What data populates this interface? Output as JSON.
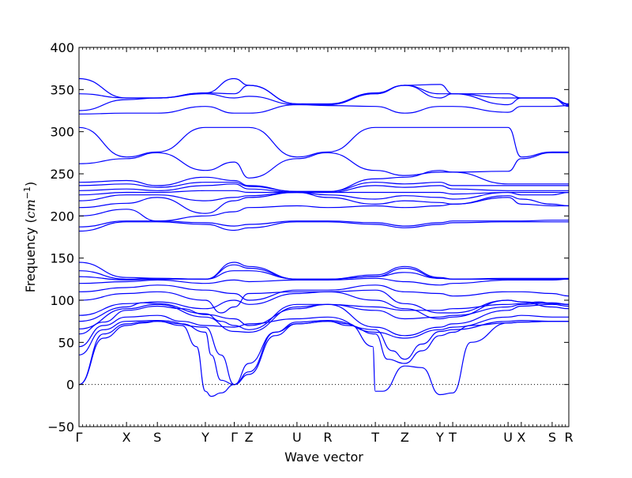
{
  "chart_data": {
    "type": "line",
    "title": "",
    "xlabel": "Wave vector",
    "ylabel_prefix": "Frequency (",
    "ylabel_unit": "cm",
    "ylabel_exponent": "−1",
    "ylabel_suffix": ")",
    "ylim": [
      -50,
      400
    ],
    "yticks": [
      -50,
      0,
      50,
      100,
      150,
      200,
      250,
      300,
      350,
      400
    ],
    "ytick_labels": [
      "−50",
      "0",
      "50",
      "100",
      "150",
      "200",
      "250",
      "300",
      "350",
      "400"
    ],
    "xlim": [
      0,
      1
    ],
    "grid": false,
    "zero_line": {
      "y": 0,
      "style": "dotted"
    },
    "line_color": "#0000ff",
    "high_symmetry_points": [
      {
        "label": "Γ",
        "x": 0.0
      },
      {
        "label": "X",
        "x": 0.097
      },
      {
        "label": "S",
        "x": 0.16
      },
      {
        "label": "Y",
        "x": 0.258
      },
      {
        "label": "Γ",
        "x": 0.317
      },
      {
        "label": "Z",
        "x": 0.347
      },
      {
        "label": "U",
        "x": 0.445
      },
      {
        "label": "R",
        "x": 0.508
      },
      {
        "label": "T",
        "x": 0.605
      },
      {
        "label": "Z",
        "x": 0.665
      },
      {
        "label": "Y",
        "x": 0.737
      },
      {
        "label": "T",
        "x": 0.763
      },
      {
        "label": "U",
        "x": 0.876
      },
      {
        "label": "X",
        "x": 0.903
      },
      {
        "label": "S",
        "x": 0.966
      },
      {
        "label": "R",
        "x": 1.0
      }
    ],
    "series": [
      {
        "x": [
          0,
          0.05,
          0.097,
          0.13,
          0.16,
          0.21,
          0.258,
          0.27,
          0.29,
          0.317,
          0.347,
          0.4,
          0.445,
          0.508,
          0.55,
          0.605,
          0.63,
          0.665,
          0.7,
          0.737,
          0.763,
          0.8,
          0.876,
          0.903,
          0.966,
          1.0
        ],
        "y": [
          0,
          55,
          70,
          73,
          75,
          72,
          62,
          35,
          5,
          0,
          12,
          58,
          72,
          75,
          70,
          60,
          30,
          25,
          40,
          58,
          62,
          70,
          73,
          74,
          75,
          75
        ]
      },
      {
        "x": [
          0,
          0.05,
          0.097,
          0.13,
          0.16,
          0.21,
          0.24,
          0.258,
          0.27,
          0.29,
          0.317,
          0.347,
          0.4,
          0.445,
          0.508,
          0.55,
          0.6,
          0.605,
          0.62,
          0.665,
          0.7,
          0.737,
          0.763,
          0.8,
          0.876,
          0.903,
          0.966,
          1.0
        ],
        "y": [
          0,
          60,
          72,
          74,
          75,
          70,
          45,
          -8,
          -14,
          -10,
          0,
          15,
          62,
          72,
          75,
          72,
          45,
          -8,
          -8,
          22,
          20,
          -12,
          -10,
          50,
          73,
          74,
          75,
          75
        ]
      },
      {
        "x": [
          0,
          0.05,
          0.097,
          0.16,
          0.258,
          0.29,
          0.317,
          0.347,
          0.4,
          0.445,
          0.508,
          0.605,
          0.64,
          0.665,
          0.7,
          0.737,
          0.763,
          0.876,
          0.903,
          0.966,
          1.0
        ],
        "y": [
          35,
          65,
          75,
          76,
          68,
          35,
          0,
          25,
          62,
          74,
          76,
          65,
          40,
          30,
          48,
          63,
          65,
          75,
          76,
          75,
          75
        ]
      },
      {
        "x": [
          0,
          0.05,
          0.097,
          0.16,
          0.21,
          0.258,
          0.317,
          0.347,
          0.445,
          0.508,
          0.605,
          0.665,
          0.737,
          0.763,
          0.876,
          0.903,
          0.966,
          1.0
        ],
        "y": [
          45,
          70,
          80,
          82,
          75,
          70,
          68,
          72,
          78,
          80,
          62,
          55,
          65,
          68,
          80,
          82,
          80,
          80
        ]
      },
      {
        "x": [
          0,
          0.05,
          0.097,
          0.16,
          0.21,
          0.258,
          0.317,
          0.347,
          0.445,
          0.508,
          0.605,
          0.665,
          0.737,
          0.763,
          0.876,
          0.903,
          0.966,
          1.0
        ],
        "y": [
          60,
          74,
          88,
          93,
          90,
          83,
          78,
          70,
          90,
          95,
          68,
          58,
          68,
          72,
          88,
          93,
          95,
          93
        ]
      },
      {
        "x": [
          0,
          0.097,
          0.16,
          0.258,
          0.317,
          0.347,
          0.445,
          0.508,
          0.605,
          0.665,
          0.737,
          0.763,
          0.876,
          0.903,
          0.966,
          1.0
        ],
        "y": [
          66,
          90,
          95,
          80,
          63,
          62,
          92,
          95,
          88,
          78,
          80,
          82,
          92,
          95,
          97,
          95
        ]
      },
      {
        "x": [
          0,
          0.097,
          0.13,
          0.16,
          0.258,
          0.29,
          0.317,
          0.347,
          0.445,
          0.508,
          0.605,
          0.665,
          0.737,
          0.763,
          0.876,
          0.903,
          0.94,
          0.966,
          1.0
        ],
        "y": [
          75,
          92,
          97,
          96,
          84,
          75,
          70,
          65,
          95,
          95,
          92,
          88,
          88,
          90,
          95,
          96,
          98,
          96,
          95
        ]
      },
      {
        "x": [
          0,
          0.097,
          0.16,
          0.258,
          0.317,
          0.347,
          0.445,
          0.508,
          0.605,
          0.665,
          0.737,
          0.763,
          0.876,
          0.903,
          0.966,
          1.0
        ],
        "y": [
          82,
          96,
          98,
          90,
          100,
          95,
          108,
          110,
          112,
          96,
          85,
          85,
          100,
          98,
          92,
          90
        ]
      },
      {
        "x": [
          0,
          0.097,
          0.16,
          0.258,
          0.29,
          0.317,
          0.347,
          0.445,
          0.508,
          0.605,
          0.665,
          0.737,
          0.763,
          0.876,
          0.903,
          0.966,
          1.0
        ],
        "y": [
          100,
          108,
          110,
          100,
          85,
          92,
          108,
          110,
          110,
          100,
          90,
          78,
          80,
          100,
          98,
          96,
          95
        ]
      },
      {
        "x": [
          0,
          0.097,
          0.16,
          0.258,
          0.317,
          0.347,
          0.445,
          0.508,
          0.605,
          0.665,
          0.737,
          0.763,
          0.876,
          0.903,
          0.966,
          1.0
        ],
        "y": [
          110,
          115,
          118,
          112,
          108,
          100,
          112,
          112,
          118,
          110,
          108,
          105,
          110,
          110,
          108,
          105
        ]
      },
      {
        "x": [
          0,
          0.097,
          0.16,
          0.258,
          0.317,
          0.347,
          0.445,
          0.508,
          0.605,
          0.665,
          0.737,
          0.763,
          0.876,
          0.903,
          0.966,
          1.0
        ],
        "y": [
          120,
          122,
          124,
          120,
          124,
          122,
          124,
          124,
          126,
          122,
          118,
          120,
          124,
          124,
          124,
          125
        ]
      },
      {
        "x": [
          0,
          0.097,
          0.16,
          0.258,
          0.317,
          0.347,
          0.445,
          0.508,
          0.605,
          0.665,
          0.737,
          0.763,
          0.876,
          0.903,
          0.966,
          1.0
        ],
        "y": [
          128,
          124,
          125,
          125,
          135,
          135,
          125,
          125,
          128,
          133,
          126,
          125,
          125,
          125,
          125,
          125
        ]
      },
      {
        "x": [
          0,
          0.097,
          0.16,
          0.258,
          0.317,
          0.347,
          0.445,
          0.508,
          0.605,
          0.665,
          0.737,
          0.763,
          0.876,
          0.903,
          0.966,
          1.0
        ],
        "y": [
          135,
          125,
          126,
          125,
          142,
          138,
          125,
          125,
          128,
          138,
          126,
          125,
          125,
          125,
          125,
          125
        ]
      },
      {
        "x": [
          0,
          0.097,
          0.16,
          0.258,
          0.317,
          0.347,
          0.445,
          0.508,
          0.605,
          0.665,
          0.737,
          0.763,
          0.876,
          0.903,
          0.966,
          1.0
        ],
        "y": [
          145,
          127,
          126,
          125,
          145,
          140,
          125,
          125,
          130,
          140,
          127,
          125,
          126,
          126,
          126,
          126
        ]
      },
      {
        "x": [
          0,
          0.097,
          0.16,
          0.258,
          0.317,
          0.347,
          0.445,
          0.508,
          0.605,
          0.665,
          0.737,
          0.763,
          0.876,
          0.903,
          0.966,
          1.0
        ],
        "y": [
          182,
          193,
          193,
          190,
          183,
          186,
          193,
          193,
          190,
          186,
          190,
          192,
          193,
          193,
          193,
          193
        ]
      },
      {
        "x": [
          0,
          0.097,
          0.16,
          0.258,
          0.317,
          0.347,
          0.445,
          0.508,
          0.605,
          0.665,
          0.737,
          0.763,
          0.876,
          0.903,
          0.966,
          1.0
        ],
        "y": [
          187,
          194,
          194,
          192,
          188,
          190,
          194,
          194,
          192,
          188,
          192,
          194,
          194,
          194,
          195,
          195
        ]
      },
      {
        "x": [
          0,
          0.097,
          0.16,
          0.258,
          0.317,
          0.347,
          0.445,
          0.508,
          0.605,
          0.665,
          0.737,
          0.763,
          0.876,
          0.903,
          0.966,
          1.0
        ],
        "y": [
          200,
          208,
          194,
          200,
          205,
          210,
          212,
          210,
          212,
          210,
          212,
          214,
          222,
          214,
          212,
          212
        ]
      },
      {
        "x": [
          0,
          0.097,
          0.16,
          0.258,
          0.317,
          0.347,
          0.445,
          0.508,
          0.605,
          0.665,
          0.737,
          0.763,
          0.876,
          0.903,
          0.966,
          1.0
        ],
        "y": [
          210,
          215,
          222,
          203,
          218,
          222,
          228,
          222,
          214,
          218,
          216,
          214,
          224,
          220,
          214,
          212
        ]
      },
      {
        "x": [
          0,
          0.097,
          0.16,
          0.258,
          0.317,
          0.347,
          0.445,
          0.508,
          0.605,
          0.665,
          0.737,
          0.763,
          0.876,
          0.903,
          0.966,
          1.0
        ],
        "y": [
          218,
          225,
          225,
          218,
          222,
          224,
          228,
          225,
          220,
          224,
          222,
          220,
          228,
          225,
          225,
          228
        ]
      },
      {
        "x": [
          0,
          0.097,
          0.16,
          0.258,
          0.317,
          0.347,
          0.445,
          0.508,
          0.605,
          0.665,
          0.737,
          0.763,
          0.876,
          0.903,
          0.966,
          1.0
        ],
        "y": [
          225,
          228,
          228,
          230,
          230,
          228,
          228,
          228,
          228,
          228,
          228,
          226,
          228,
          228,
          228,
          228
        ]
      },
      {
        "x": [
          0,
          0.097,
          0.16,
          0.258,
          0.317,
          0.347,
          0.445,
          0.508,
          0.605,
          0.665,
          0.737,
          0.763,
          0.876,
          0.903,
          0.966,
          1.0
        ],
        "y": [
          230,
          232,
          230,
          236,
          238,
          232,
          228,
          228,
          236,
          234,
          236,
          232,
          230,
          230,
          230,
          230
        ]
      },
      {
        "x": [
          0,
          0.097,
          0.16,
          0.258,
          0.317,
          0.347,
          0.445,
          0.508,
          0.605,
          0.665,
          0.737,
          0.763,
          0.876,
          0.903,
          0.966,
          1.0
        ],
        "y": [
          236,
          238,
          234,
          240,
          240,
          235,
          229,
          229,
          240,
          238,
          240,
          236,
          236,
          236,
          236,
          236
        ]
      },
      {
        "x": [
          0,
          0.097,
          0.16,
          0.258,
          0.317,
          0.347,
          0.445,
          0.508,
          0.605,
          0.665,
          0.737,
          0.763,
          0.876,
          0.903,
          0.966,
          1.0
        ],
        "y": [
          240,
          242,
          236,
          246,
          242,
          236,
          229,
          229,
          244,
          246,
          254,
          252,
          238,
          238,
          238,
          238
        ]
      },
      {
        "x": [
          0,
          0.097,
          0.16,
          0.258,
          0.317,
          0.347,
          0.445,
          0.508,
          0.605,
          0.665,
          0.737,
          0.763,
          0.876,
          0.903,
          0.966,
          1.0
        ],
        "y": [
          262,
          268,
          275,
          254,
          264,
          245,
          268,
          275,
          254,
          248,
          252,
          252,
          253,
          268,
          275,
          275
        ]
      },
      {
        "x": [
          0,
          0.097,
          0.16,
          0.258,
          0.317,
          0.347,
          0.445,
          0.508,
          0.605,
          0.665,
          0.737,
          0.763,
          0.876,
          0.903,
          0.966,
          1.0
        ],
        "y": [
          305,
          270,
          276,
          305,
          305,
          305,
          270,
          276,
          305,
          305,
          305,
          305,
          305,
          270,
          276,
          276
        ]
      },
      {
        "x": [
          0,
          0.097,
          0.16,
          0.258,
          0.317,
          0.347,
          0.445,
          0.508,
          0.605,
          0.665,
          0.737,
          0.763,
          0.876,
          0.903,
          0.966,
          1.0
        ],
        "y": [
          321,
          322,
          322,
          330,
          322,
          322,
          332,
          331,
          330,
          322,
          330,
          330,
          323,
          330,
          330,
          331
        ]
      },
      {
        "x": [
          0,
          0.097,
          0.16,
          0.258,
          0.317,
          0.347,
          0.445,
          0.508,
          0.605,
          0.665,
          0.737,
          0.763,
          0.876,
          0.903,
          0.966,
          1.0
        ],
        "y": [
          325,
          338,
          340,
          345,
          340,
          342,
          332,
          332,
          345,
          355,
          345,
          345,
          332,
          340,
          340,
          330
        ]
      },
      {
        "x": [
          0,
          0.097,
          0.16,
          0.258,
          0.317,
          0.347,
          0.445,
          0.508,
          0.605,
          0.665,
          0.737,
          0.763,
          0.876,
          0.903,
          0.966,
          1.0
        ],
        "y": [
          345,
          340,
          340,
          346,
          345,
          355,
          333,
          332,
          345,
          355,
          340,
          345,
          340,
          340,
          340,
          332
        ]
      },
      {
        "x": [
          0,
          0.097,
          0.16,
          0.258,
          0.317,
          0.347,
          0.445,
          0.508,
          0.605,
          0.665,
          0.737,
          0.763,
          0.876,
          0.903,
          0.966,
          1.0
        ],
        "y": [
          363,
          340,
          340,
          346,
          363,
          355,
          333,
          333,
          346,
          355,
          356,
          345,
          345,
          340,
          340,
          333
        ]
      }
    ]
  }
}
